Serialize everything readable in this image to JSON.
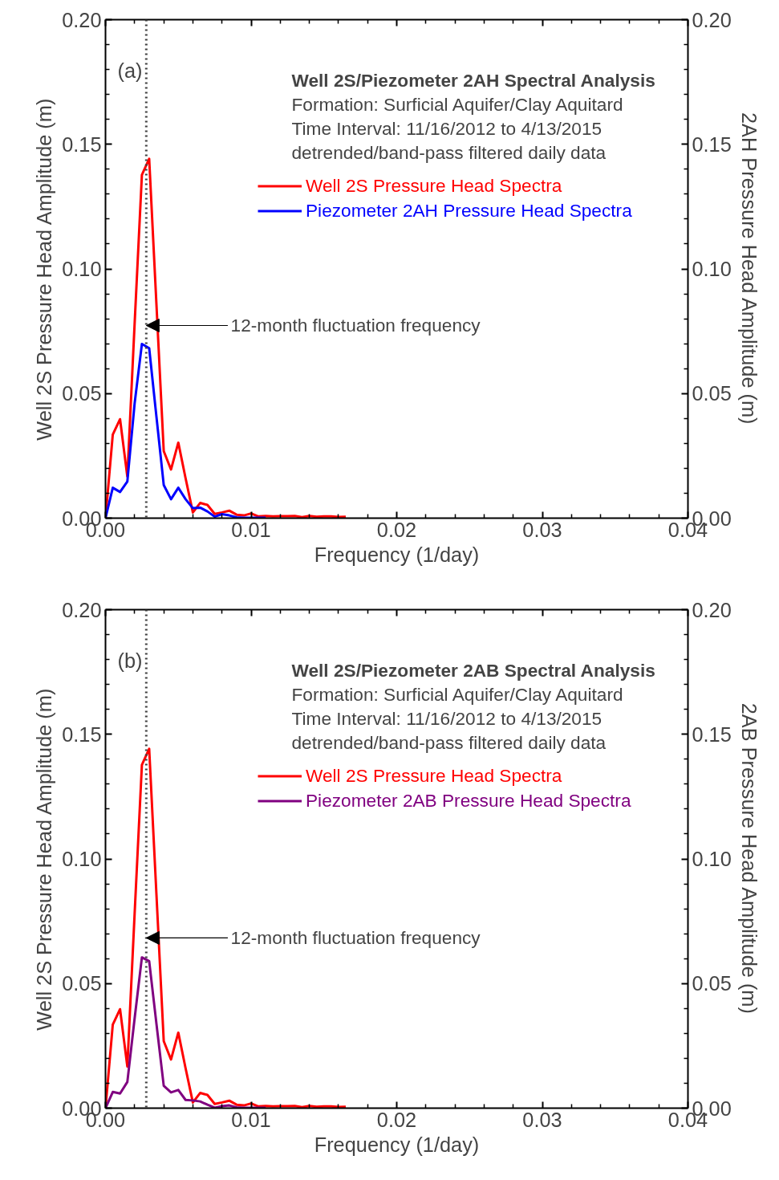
{
  "chart_data": [
    {
      "type": "line",
      "title": "Well 2S/Piezometer 2AH Spectral Analysis",
      "xlabel": "Frequency (1/day)",
      "ylabel": "Well 2S Pressure Head Amplitude (m)",
      "y2label": "2AH Pressure Head Amplitude (m)",
      "x": [
        0,
        0.0005,
        0.001,
        0.0015,
        0.002,
        0.0025,
        0.003,
        0.0035,
        0.004,
        0.0045,
        0.005,
        0.0055,
        0.006,
        0.0065,
        0.007,
        0.0075,
        0.008,
        0.0085,
        0.009,
        0.0095,
        0.01,
        0.0105,
        0.011,
        0.0115,
        0.012,
        0.0125,
        0.013,
        0.0135,
        0.014,
        0.0145,
        0.015,
        0.0155,
        0.016,
        0.0165
      ],
      "series": [
        {
          "name": "Well 2S Pressure Head Spectra",
          "color": "#ff0000",
          "values": [
            0,
            0.0335,
            0.0397,
            0.0167,
            0.078,
            0.1377,
            0.1442,
            0.0856,
            0.0269,
            0.0195,
            0.0303,
            0.016,
            0.0023,
            0.0061,
            0.0053,
            0.0017,
            0.0023,
            0.003,
            0.0014,
            0.0011,
            0.0019,
            0.0007,
            0.0009,
            0.0007,
            0.0008,
            0.0008,
            0.0009,
            0.0004,
            0.0009,
            0.0006,
            0.0007,
            0.0007,
            0.0005,
            0.0006
          ]
        },
        {
          "name": "Piezometer 2AH Pressure Head Spectra",
          "color": "#0000ff",
          "x": [
            0,
            0.0005,
            0.001,
            0.0015,
            0.002,
            0.0025,
            0.003,
            0.0035,
            0.004,
            0.0045,
            0.005,
            0.0055,
            0.006,
            0.0065,
            0.007,
            0.0075,
            0.008,
            0.0085,
            0.009,
            0.0095,
            0.01,
            0.0105,
            0.011
          ],
          "values": [
            0,
            0.0122,
            0.0105,
            0.0147,
            0.046,
            0.0699,
            0.0682,
            0.0406,
            0.0133,
            0.0076,
            0.0122,
            0.0076,
            0.004,
            0.0042,
            0.0027,
            0.0006,
            0.0016,
            0.0011,
            0.0003,
            0.0002,
            0.0002,
            0.0002,
            0.0002
          ]
        }
      ],
      "xlim": [
        0,
        0.04
      ],
      "xticks": [
        {
          "value": 0,
          "label": "0.00"
        },
        {
          "value": 0.01,
          "label": "0.01"
        },
        {
          "value": 0.02,
          "label": "0.02"
        },
        {
          "value": 0.03,
          "label": "0.03"
        },
        {
          "value": 0.04,
          "label": "0.04"
        }
      ],
      "ylim": [
        0,
        0.2
      ],
      "yticks": [
        {
          "value": 0,
          "label": "0.00"
        },
        {
          "value": 0.05,
          "label": "0.05"
        },
        {
          "value": 0.1,
          "label": "0.10"
        },
        {
          "value": 0.15,
          "label": "0.15"
        },
        {
          "value": 0.2,
          "label": "0.20"
        }
      ],
      "y2lim": [
        0,
        0.2
      ],
      "y2ticks": [
        {
          "value": 0,
          "label": "0.00"
        },
        {
          "value": 0.05,
          "label": "0.05"
        },
        {
          "value": 0.1,
          "label": "0.10"
        },
        {
          "value": 0.15,
          "label": "0.15"
        },
        {
          "value": 0.2,
          "label": "0.20"
        }
      ],
      "ref_lines": [
        {
          "axis": "x",
          "value": 0.0028,
          "color": "#404040",
          "line_style": "dotted"
        }
      ],
      "annotations": [
        "(a)",
        "Formation:  Surficial Aquifer/Clay Aquitard",
        "Time Interval:  11/16/2012 to 4/13/2015",
        "detrended/band-pass filtered daily data",
        {
          "text": "12-month fluctuation frequency",
          "x": 0.0028,
          "y": 0.0773
        }
      ],
      "legend": "top right",
      "grid": false,
      "marker": "none",
      "line_style": "solid"
    },
    {
      "type": "line",
      "title": "Well 2S/Piezometer 2AB Spectral Analysis",
      "xlabel": "Frequency (1/day)",
      "ylabel": "Well 2S Pressure Head Amplitude (m)",
      "y2label": "2AB Pressure Head Amplitude (m)",
      "x": [
        0,
        0.0005,
        0.001,
        0.0015,
        0.002,
        0.0025,
        0.003,
        0.0035,
        0.004,
        0.0045,
        0.005,
        0.0055,
        0.006,
        0.0065,
        0.007,
        0.0075,
        0.008,
        0.0085,
        0.009,
        0.0095,
        0.01,
        0.0105,
        0.011,
        0.0115,
        0.012,
        0.0125,
        0.013,
        0.0135,
        0.014,
        0.0145,
        0.015,
        0.0155,
        0.016,
        0.0165
      ],
      "series": [
        {
          "name": "Well 2S Pressure Head Spectra",
          "color": "#ff0000",
          "values": [
            0,
            0.0335,
            0.0397,
            0.0167,
            0.078,
            0.1377,
            0.1442,
            0.0856,
            0.0269,
            0.0195,
            0.0303,
            0.016,
            0.0023,
            0.0061,
            0.0053,
            0.0017,
            0.0023,
            0.003,
            0.0014,
            0.0011,
            0.0019,
            0.0007,
            0.0009,
            0.0007,
            0.0008,
            0.0008,
            0.0009,
            0.0004,
            0.0009,
            0.0006,
            0.0007,
            0.0007,
            0.0005,
            0.0006
          ]
        },
        {
          "name": "Piezometer 2AB Pressure Head Spectra",
          "color": "#800080",
          "x": [
            0,
            0.0005,
            0.001,
            0.0015,
            0.002,
            0.0025,
            0.003,
            0.0035,
            0.004,
            0.0045,
            0.005,
            0.0055,
            0.006,
            0.0065,
            0.007,
            0.0075,
            0.008,
            0.0085,
            0.009,
            0.0095,
            0.01,
            0.0105,
            0.011
          ],
          "values": [
            0,
            0.0065,
            0.0059,
            0.0105,
            0.036,
            0.0605,
            0.059,
            0.0338,
            0.009,
            0.0063,
            0.0073,
            0.0033,
            0.0031,
            0.0027,
            0.0014,
            0.0002,
            0.0008,
            0.0011,
            0.0003,
            0.0002,
            0.0002,
            0.0002,
            0.0002
          ]
        }
      ],
      "xlim": [
        0,
        0.04
      ],
      "xticks": [
        {
          "value": 0,
          "label": "0.00"
        },
        {
          "value": 0.01,
          "label": "0.01"
        },
        {
          "value": 0.02,
          "label": "0.02"
        },
        {
          "value": 0.03,
          "label": "0.03"
        },
        {
          "value": 0.04,
          "label": "0.04"
        }
      ],
      "ylim": [
        0,
        0.2
      ],
      "yticks": [
        {
          "value": 0,
          "label": "0.00"
        },
        {
          "value": 0.05,
          "label": "0.05"
        },
        {
          "value": 0.1,
          "label": "0.10"
        },
        {
          "value": 0.15,
          "label": "0.15"
        },
        {
          "value": 0.2,
          "label": "0.20"
        }
      ],
      "y2lim": [
        0,
        0.2
      ],
      "y2ticks": [
        {
          "value": 0,
          "label": "0.00"
        },
        {
          "value": 0.05,
          "label": "0.05"
        },
        {
          "value": 0.1,
          "label": "0.10"
        },
        {
          "value": 0.15,
          "label": "0.15"
        },
        {
          "value": 0.2,
          "label": "0.20"
        }
      ],
      "ref_lines": [
        {
          "axis": "x",
          "value": 0.0028,
          "color": "#404040",
          "line_style": "dotted"
        }
      ],
      "annotations": [
        "(b)",
        "Formation:  Surficial Aquifer/Clay Aquitard",
        "Time Interval:  11/16/2012 to 4/13/2015",
        "detrended/band-pass filtered daily data",
        {
          "text": "12-month fluctuation frequency",
          "x": 0.0028,
          "y": 0.0683
        }
      ],
      "legend": "top right",
      "grid": false,
      "marker": "none",
      "line_style": "solid"
    }
  ]
}
